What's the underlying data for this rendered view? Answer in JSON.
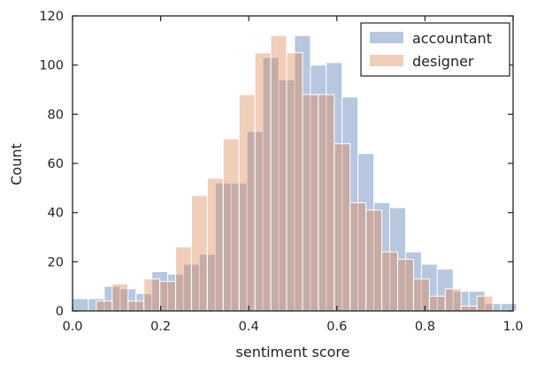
{
  "chart_data": {
    "type": "bar",
    "subtype": "overlaid-histogram",
    "title": "",
    "xlabel": "sentiment score",
    "ylabel": "Count",
    "xlim": [
      0.0,
      1.0
    ],
    "ylim": [
      0,
      120
    ],
    "xticks": [
      "0.0",
      "0.2",
      "0.4",
      "0.6",
      "0.8",
      "1.0"
    ],
    "yticks": [
      "0",
      "20",
      "40",
      "60",
      "80",
      "100",
      "120"
    ],
    "grid": false,
    "legend_position": "top-right",
    "series": [
      {
        "name": "accountant",
        "color": "#4c72b0",
        "bin_edges": [
          0.0,
          0.036,
          0.072,
          0.108,
          0.144,
          0.18,
          0.216,
          0.252,
          0.288,
          0.324,
          0.36,
          0.396,
          0.432,
          0.468,
          0.504,
          0.54,
          0.576,
          0.612,
          0.648,
          0.684,
          0.72,
          0.756,
          0.792,
          0.828,
          0.864,
          0.9,
          0.936,
          0.972
        ],
        "counts": [
          5,
          5,
          10,
          9,
          7,
          16,
          15,
          19,
          23,
          52,
          52,
          73,
          103,
          94,
          112,
          100,
          101,
          87,
          64,
          44,
          42,
          24,
          19,
          17,
          8,
          8,
          3,
          3
        ]
      },
      {
        "name": "designer",
        "color": "#dd8452",
        "bin_edges": [
          0.018,
          0.054,
          0.09,
          0.126,
          0.162,
          0.198,
          0.234,
          0.27,
          0.306,
          0.342,
          0.378,
          0.414,
          0.45,
          0.486,
          0.522,
          0.558,
          0.594,
          0.63,
          0.666,
          0.702,
          0.738,
          0.774,
          0.81,
          0.846,
          0.882,
          0.918,
          0.954,
          0.99
        ],
        "counts": [
          0,
          4,
          11,
          4,
          13,
          12,
          26,
          47,
          54,
          70,
          88,
          105,
          112,
          105,
          88,
          88,
          68,
          44,
          41,
          24,
          21,
          13,
          6,
          9,
          2,
          6,
          0,
          0
        ]
      }
    ]
  }
}
